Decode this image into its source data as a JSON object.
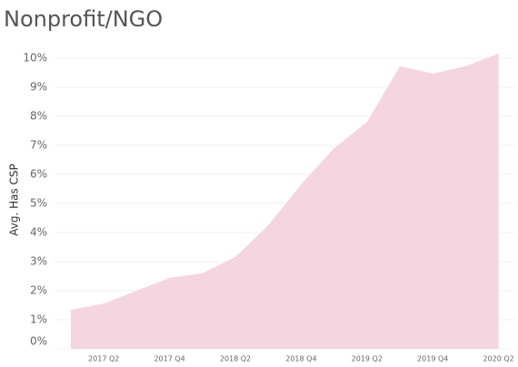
{
  "chart_data": {
    "type": "area",
    "title": "Nonprofit/NGO",
    "y_label": "Avg. Has CSP",
    "categories": [
      null,
      "2017 Q2",
      null,
      "2017 Q4",
      null,
      "2018 Q2",
      null,
      "2018 Q4",
      null,
      "2019 Q2",
      null,
      "2019 Q4",
      null,
      "2020 Q2"
    ],
    "values": [
      1.34,
      1.56,
      2.0,
      2.44,
      2.6,
      3.16,
      4.25,
      5.66,
      6.9,
      7.8,
      9.72,
      9.47,
      9.72,
      10.16
    ],
    "color": "#f5d5e0",
    "ylim": [
      0,
      10.5
    ],
    "yticks": [
      {
        "value": 0,
        "label": "0%"
      },
      {
        "value": 1,
        "label": "1%"
      },
      {
        "value": 2,
        "label": "2%"
      },
      {
        "value": 3,
        "label": "3%"
      },
      {
        "value": 4,
        "label": "4%"
      },
      {
        "value": 5,
        "label": "5%"
      },
      {
        "value": 6,
        "label": "6%"
      },
      {
        "value": 7,
        "label": "7%"
      },
      {
        "value": 8,
        "label": "8%"
      },
      {
        "value": 9,
        "label": "9%"
      },
      {
        "value": 10,
        "label": "10%"
      }
    ],
    "grid": true
  }
}
